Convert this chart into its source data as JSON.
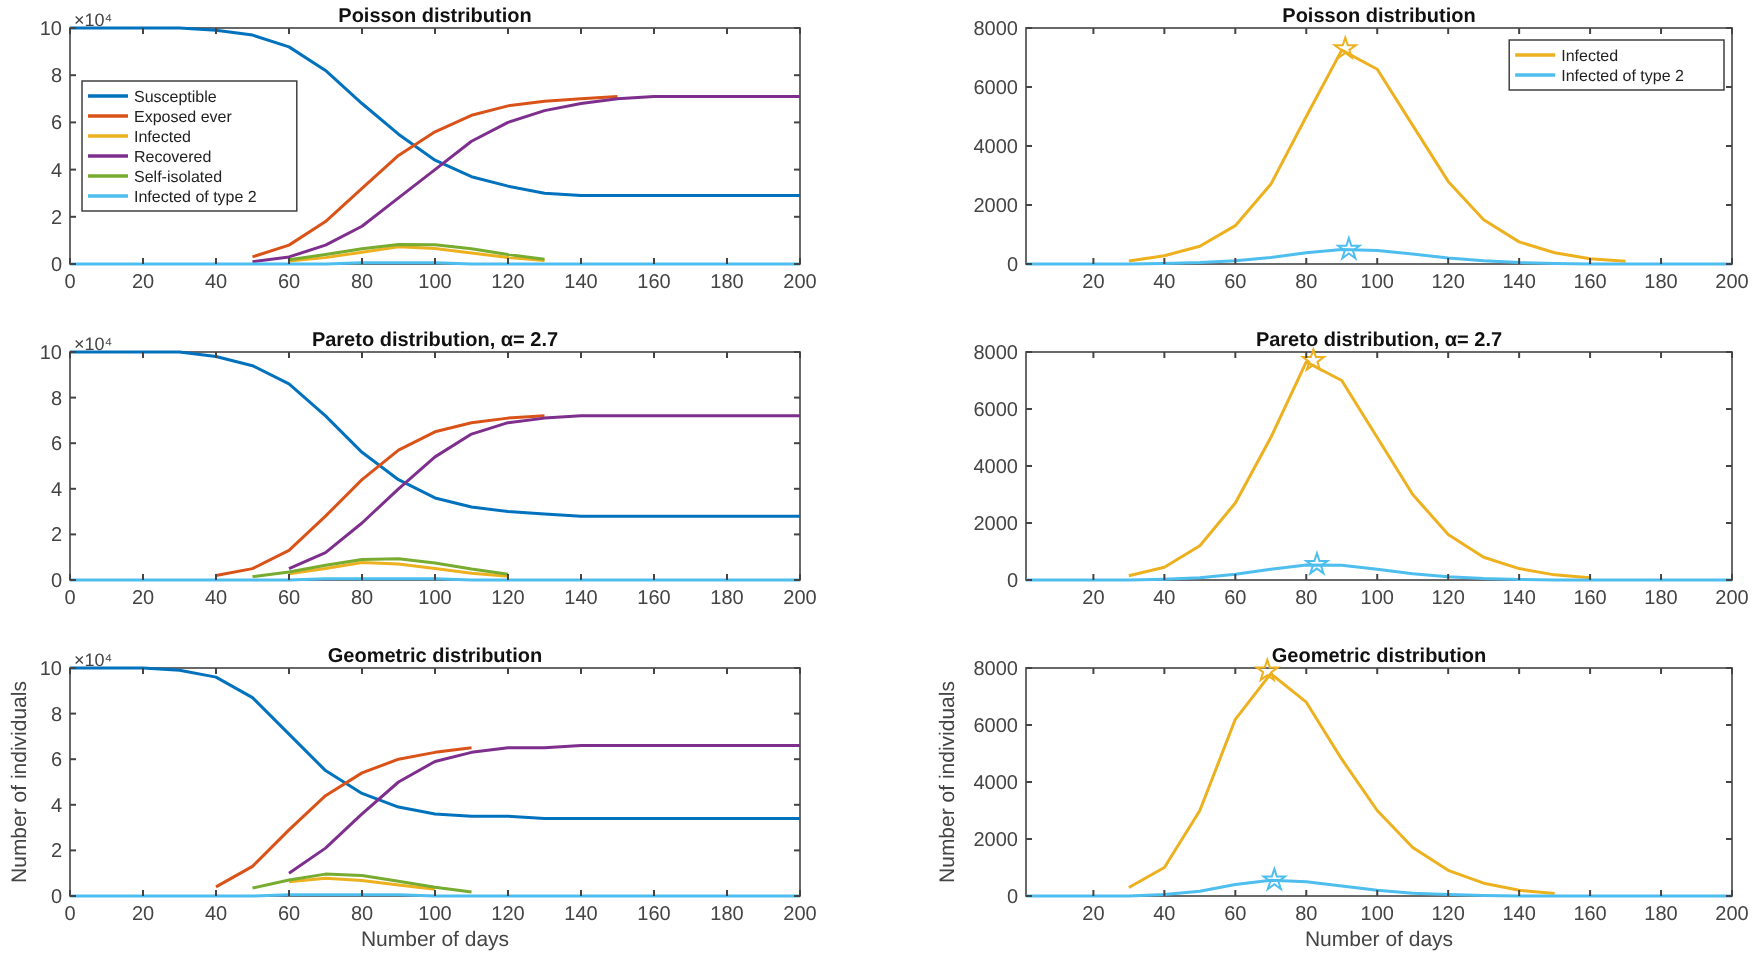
{
  "chart_data": [
    {
      "type": "line",
      "title": "Poisson distribution",
      "annotations": [
        "×10⁴"
      ],
      "x": [
        0,
        10,
        20,
        30,
        40,
        50,
        60,
        70,
        80,
        90,
        100,
        110,
        120,
        130,
        140,
        150,
        160,
        170,
        180,
        190,
        200
      ],
      "xlim": [
        0,
        200
      ],
      "xticks": [
        0,
        20,
        40,
        60,
        80,
        100,
        120,
        140,
        160,
        180,
        200
      ],
      "ylim": [
        0,
        10
      ],
      "yticks": [
        0,
        2,
        4,
        6,
        8,
        10
      ],
      "legend": "left",
      "series": [
        {
          "name": "Susceptible",
          "color": "#0072bd",
          "values": [
            10,
            10,
            10,
            10,
            9.9,
            9.7,
            9.2,
            8.2,
            6.8,
            5.5,
            4.4,
            3.7,
            3.3,
            3.0,
            2.9,
            2.9,
            2.9,
            2.9,
            2.9,
            2.9,
            2.9
          ]
        },
        {
          "name": "Exposed ever",
          "color": "#d95319",
          "values": [
            null,
            null,
            null,
            null,
            null,
            0.3,
            0.8,
            1.8,
            3.2,
            4.6,
            5.6,
            6.3,
            6.7,
            6.9,
            7.0,
            7.1,
            null,
            null,
            null,
            null,
            null
          ]
        },
        {
          "name": "Infected",
          "color": "#edb120",
          "values": [
            null,
            null,
            null,
            null,
            null,
            null,
            0.13,
            0.27,
            0.5,
            0.73,
            0.66,
            0.47,
            0.28,
            0.15,
            null,
            null,
            null,
            null,
            null,
            null,
            null
          ]
        },
        {
          "name": "Recovered",
          "color": "#7e2f8e",
          "values": [
            null,
            null,
            null,
            null,
            null,
            0.1,
            0.3,
            0.8,
            1.6,
            2.8,
            4.0,
            5.2,
            6.0,
            6.5,
            6.8,
            7.0,
            7.1,
            7.1,
            7.1,
            7.1,
            7.1
          ]
        },
        {
          "name": "Self-isolated",
          "color": "#77ac30",
          "values": [
            null,
            null,
            null,
            null,
            null,
            null,
            0.18,
            0.4,
            0.65,
            0.83,
            0.82,
            0.65,
            0.4,
            0.2,
            null,
            null,
            null,
            null,
            null,
            null,
            null
          ]
        },
        {
          "name": "Infected of type 2",
          "color": "#4dbeee",
          "values": [
            0,
            0,
            0,
            0,
            0,
            0,
            0,
            0,
            0.05,
            0.05,
            0.05,
            0,
            0,
            0,
            0,
            0,
            0,
            0,
            0,
            0,
            0
          ]
        }
      ]
    },
    {
      "type": "line",
      "title": "Poisson distribution",
      "x": [
        1,
        10,
        20,
        30,
        40,
        50,
        60,
        70,
        80,
        90,
        100,
        110,
        120,
        130,
        140,
        150,
        160,
        170,
        180,
        190,
        200
      ],
      "xlim": [
        1,
        200
      ],
      "xticks": [
        20,
        40,
        60,
        80,
        100,
        120,
        140,
        160,
        180,
        200
      ],
      "ylim": [
        0,
        8000
      ],
      "yticks": [
        0,
        2000,
        4000,
        6000,
        8000
      ],
      "legend": "top right",
      "series": [
        {
          "name": "Infected",
          "color": "#edb120",
          "values": [
            null,
            null,
            null,
            100,
            280,
            600,
            1300,
            2700,
            5000,
            7250,
            6600,
            4700,
            2800,
            1500,
            750,
            380,
            180,
            90,
            null,
            null,
            null
          ]
        },
        {
          "name": "Infected of type 2",
          "color": "#4dbeee",
          "values": [
            0,
            0,
            0,
            0,
            20,
            50,
            110,
            220,
            380,
            490,
            460,
            340,
            200,
            110,
            50,
            20,
            0,
            0,
            0,
            0,
            0
          ]
        },
        {
          "type": "scatter",
          "marker": "star",
          "color": "#edb120",
          "x": [
            91
          ],
          "values": [
            7300
          ]
        },
        {
          "type": "scatter",
          "marker": "star",
          "color": "#4dbeee",
          "x": [
            92
          ],
          "values": [
            500
          ]
        }
      ]
    },
    {
      "type": "line",
      "title": "Pareto distribution, α= 2.7",
      "annotations": [
        "×10⁴"
      ],
      "x": [
        0,
        10,
        20,
        30,
        40,
        50,
        60,
        70,
        80,
        90,
        100,
        110,
        120,
        130,
        140,
        150,
        160,
        170,
        180,
        190,
        200
      ],
      "xlim": [
        0,
        200
      ],
      "xticks": [
        0,
        20,
        40,
        60,
        80,
        100,
        120,
        140,
        160,
        180,
        200
      ],
      "ylim": [
        0,
        10
      ],
      "yticks": [
        0,
        2,
        4,
        6,
        8,
        10
      ],
      "series": [
        {
          "color": "#0072bd",
          "values": [
            10,
            10,
            10,
            10,
            9.8,
            9.4,
            8.6,
            7.2,
            5.6,
            4.4,
            3.6,
            3.2,
            3.0,
            2.9,
            2.8,
            2.8,
            2.8,
            2.8,
            2.8,
            2.8,
            2.8
          ]
        },
        {
          "color": "#d95319",
          "values": [
            null,
            null,
            null,
            null,
            0.2,
            0.5,
            1.3,
            2.8,
            4.4,
            5.7,
            6.5,
            6.9,
            7.1,
            7.2,
            null,
            null,
            null,
            null,
            null,
            null,
            null
          ]
        },
        {
          "color": "#edb120",
          "values": [
            null,
            null,
            null,
            null,
            null,
            null,
            0.27,
            0.5,
            0.77,
            0.7,
            0.5,
            0.3,
            0.16,
            null,
            null,
            null,
            null,
            null,
            null,
            null,
            null
          ]
        },
        {
          "color": "#7e2f8e",
          "values": [
            null,
            null,
            null,
            null,
            null,
            null,
            0.5,
            1.2,
            2.5,
            4.0,
            5.4,
            6.4,
            6.9,
            7.1,
            7.2,
            7.2,
            7.2,
            7.2,
            7.2,
            7.2,
            7.2
          ]
        },
        {
          "color": "#77ac30",
          "values": [
            null,
            null,
            null,
            null,
            null,
            0.15,
            0.35,
            0.65,
            0.9,
            0.93,
            0.75,
            0.48,
            0.25,
            null,
            null,
            null,
            null,
            null,
            null,
            null,
            null
          ]
        },
        {
          "color": "#4dbeee",
          "values": [
            0,
            0,
            0,
            0,
            0,
            0,
            0,
            0.05,
            0.05,
            0.05,
            0.05,
            0,
            0,
            0,
            0,
            0,
            0,
            0,
            0,
            0,
            0
          ]
        }
      ]
    },
    {
      "type": "line",
      "title": "Pareto distribution, α= 2.7",
      "x": [
        1,
        10,
        20,
        30,
        40,
        50,
        60,
        70,
        80,
        90,
        100,
        110,
        120,
        130,
        140,
        150,
        160,
        170,
        180,
        190,
        200
      ],
      "xlim": [
        1,
        200
      ],
      "xticks": [
        20,
        40,
        60,
        80,
        100,
        120,
        140,
        160,
        180,
        200
      ],
      "ylim": [
        0,
        8000
      ],
      "yticks": [
        0,
        2000,
        4000,
        6000,
        8000
      ],
      "series": [
        {
          "color": "#edb120",
          "values": [
            null,
            null,
            null,
            150,
            450,
            1200,
            2700,
            5000,
            7650,
            7000,
            5000,
            3000,
            1600,
            800,
            400,
            180,
            80,
            null,
            null,
            null,
            null
          ]
        },
        {
          "color": "#4dbeee",
          "values": [
            0,
            0,
            0,
            0,
            30,
            80,
            200,
            380,
            530,
            520,
            380,
            220,
            110,
            50,
            20,
            0,
            0,
            0,
            0,
            0,
            0
          ]
        },
        {
          "type": "scatter",
          "marker": "star",
          "color": "#edb120",
          "x": [
            82
          ],
          "values": [
            7700
          ]
        },
        {
          "type": "scatter",
          "marker": "star",
          "color": "#4dbeee",
          "x": [
            83
          ],
          "values": [
            550
          ]
        }
      ]
    },
    {
      "type": "line",
      "title": "Geometric distribution",
      "annotations": [
        "×10⁴"
      ],
      "xlabel": "Number of days",
      "ylabel": "Number of individuals",
      "x": [
        0,
        10,
        20,
        30,
        40,
        50,
        60,
        70,
        80,
        90,
        100,
        110,
        120,
        130,
        140,
        150,
        160,
        170,
        180,
        190,
        200
      ],
      "xlim": [
        0,
        200
      ],
      "xticks": [
        0,
        20,
        40,
        60,
        80,
        100,
        120,
        140,
        160,
        180,
        200
      ],
      "ylim": [
        0,
        10
      ],
      "yticks": [
        0,
        2,
        4,
        6,
        8,
        10
      ],
      "series": [
        {
          "color": "#0072bd",
          "values": [
            10,
            10,
            10,
            9.9,
            9.6,
            8.7,
            7.1,
            5.5,
            4.5,
            3.9,
            3.6,
            3.5,
            3.5,
            3.4,
            3.4,
            3.4,
            3.4,
            3.4,
            3.4,
            3.4,
            3.4
          ]
        },
        {
          "color": "#d95319",
          "values": [
            null,
            null,
            null,
            null,
            0.4,
            1.3,
            2.9,
            4.4,
            5.4,
            6.0,
            6.3,
            6.5,
            null,
            null,
            null,
            null,
            null,
            null,
            null,
            null,
            null
          ]
        },
        {
          "color": "#edb120",
          "values": [
            null,
            null,
            null,
            null,
            null,
            null,
            0.62,
            0.78,
            0.68,
            0.48,
            0.3,
            null,
            null,
            null,
            null,
            null,
            null,
            null,
            null,
            null,
            null
          ]
        },
        {
          "color": "#7e2f8e",
          "values": [
            null,
            null,
            null,
            null,
            null,
            null,
            1.0,
            2.1,
            3.6,
            5.0,
            5.9,
            6.3,
            6.5,
            6.5,
            6.6,
            6.6,
            6.6,
            6.6,
            6.6,
            6.6,
            6.6
          ]
        },
        {
          "color": "#77ac30",
          "values": [
            null,
            null,
            null,
            null,
            null,
            0.35,
            0.7,
            0.96,
            0.9,
            0.65,
            0.38,
            0.18,
            null,
            null,
            null,
            null,
            null,
            null,
            null,
            null,
            null
          ]
        },
        {
          "color": "#4dbeee",
          "values": [
            0,
            0,
            0,
            0,
            0,
            0,
            0.05,
            0.05,
            0.05,
            0.05,
            0,
            0,
            0,
            0,
            0,
            0,
            0,
            0,
            0,
            0,
            0
          ]
        }
      ]
    },
    {
      "type": "line",
      "title": "Geometric distribution",
      "xlabel": "Number of days",
      "ylabel": "Number of individuals",
      "x": [
        1,
        10,
        20,
        30,
        40,
        50,
        60,
        70,
        80,
        90,
        100,
        110,
        120,
        130,
        140,
        150,
        160,
        170,
        180,
        190,
        200
      ],
      "xlim": [
        1,
        200
      ],
      "xticks": [
        20,
        40,
        60,
        80,
        100,
        120,
        140,
        160,
        180,
        200
      ],
      "ylim": [
        0,
        8000
      ],
      "yticks": [
        0,
        2000,
        4000,
        6000,
        8000
      ],
      "series": [
        {
          "color": "#edb120",
          "values": [
            null,
            null,
            null,
            300,
            1000,
            3000,
            6200,
            7800,
            6800,
            4800,
            3000,
            1700,
            900,
            450,
            200,
            90,
            null,
            null,
            null,
            null,
            null
          ]
        },
        {
          "color": "#4dbeee",
          "values": [
            0,
            0,
            0,
            0,
            50,
            170,
            400,
            550,
            500,
            350,
            200,
            100,
            50,
            20,
            0,
            0,
            0,
            0,
            0,
            0,
            0
          ]
        },
        {
          "type": "scatter",
          "marker": "star",
          "color": "#edb120",
          "x": [
            69
          ],
          "values": [
            7900
          ]
        },
        {
          "type": "scatter",
          "marker": "star",
          "color": "#4dbeee",
          "x": [
            71
          ],
          "values": [
            560
          ]
        }
      ]
    }
  ]
}
